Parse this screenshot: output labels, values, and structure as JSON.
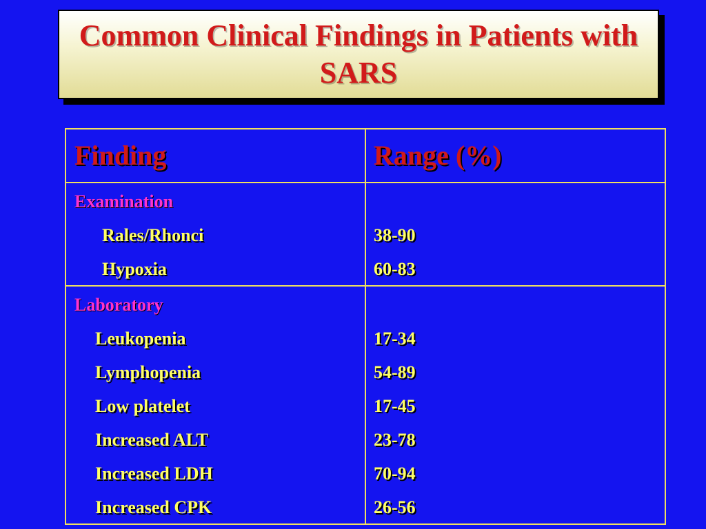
{
  "title": "Common Clinical Findings in Patients with SARS",
  "table": {
    "headers": [
      "Finding",
      "Range (%)"
    ],
    "sections": [
      {
        "label": "Examination",
        "rows": [
          {
            "finding": "Rales/Rhonci",
            "range": "38-90"
          },
          {
            "finding": "Hypoxia",
            "range": "60-83"
          }
        ]
      },
      {
        "label": "Laboratory",
        "rows": [
          {
            "finding": "Leukopenia",
            "range": "17-34"
          },
          {
            "finding": "Lymphopenia",
            "range": "54-89"
          },
          {
            "finding": "Low platelet",
            "range": "17-45"
          },
          {
            "finding": "Increased ALT",
            "range": "23-78"
          },
          {
            "finding": "Increased LDH",
            "range": "70-94"
          },
          {
            "finding": "Increased CPK",
            "range": "26-56"
          }
        ]
      }
    ]
  },
  "colors": {
    "background": "#1414f0",
    "title_text": "#d11a1a",
    "border": "#f0e060",
    "section_label": "#ff33cc",
    "item_text": "#ffff66"
  }
}
